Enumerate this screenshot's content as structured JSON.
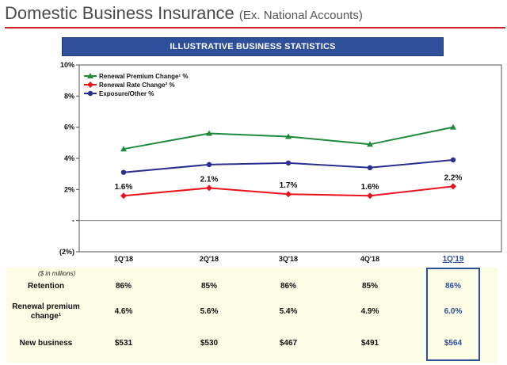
{
  "header": {
    "title": "Domestic Business Insurance",
    "subtitle": "(Ex. National Accounts)"
  },
  "banner": {
    "label": "ILLUSTRATIVE BUSINESS STATISTICS"
  },
  "chart_data": {
    "type": "line",
    "categories": [
      "1Q'18",
      "2Q'18",
      "3Q'18",
      "4Q'18",
      "1Q'19"
    ],
    "highlight_category": "1Q'19",
    "ylim": [
      -2,
      10
    ],
    "yticks": [
      {
        "value": 10,
        "label": "10%"
      },
      {
        "value": 8,
        "label": "8%"
      },
      {
        "value": 6,
        "label": "6%"
      },
      {
        "value": 4,
        "label": "4%"
      },
      {
        "value": 2,
        "label": "2%"
      },
      {
        "value": 0,
        "label": "-"
      },
      {
        "value": -2,
        "label": "(2%)"
      }
    ],
    "series": [
      {
        "name": "Renewal Premium Change¹ %",
        "color": "#1f8a3c",
        "marker": "triangle",
        "values": [
          4.6,
          5.6,
          5.4,
          4.9,
          6.0
        ]
      },
      {
        "name": "Renewal Rate Change² %",
        "color": "#e8141c",
        "marker": "diamond",
        "values": [
          1.6,
          2.1,
          1.7,
          1.6,
          2.2
        ],
        "labels": [
          "1.6%",
          "2.1%",
          "1.7%",
          "1.6%",
          "2.2%"
        ]
      },
      {
        "name": "Exposure/Other %",
        "color": "#2a2f8f",
        "marker": "circle",
        "values": [
          3.1,
          3.6,
          3.7,
          3.4,
          3.9
        ]
      }
    ],
    "legend_position": "top-left"
  },
  "table": {
    "units": "($ in millions)",
    "rows": [
      {
        "label": "Retention",
        "values": [
          "86%",
          "85%",
          "86%",
          "85%",
          "86%"
        ]
      },
      {
        "label": "Renewal premium change¹",
        "values": [
          "4.6%",
          "5.6%",
          "5.4%",
          "4.9%",
          "6.0%"
        ]
      },
      {
        "label": "New business",
        "values": [
          "$531",
          "$530",
          "$467",
          "$491",
          "$564"
        ]
      }
    ]
  }
}
